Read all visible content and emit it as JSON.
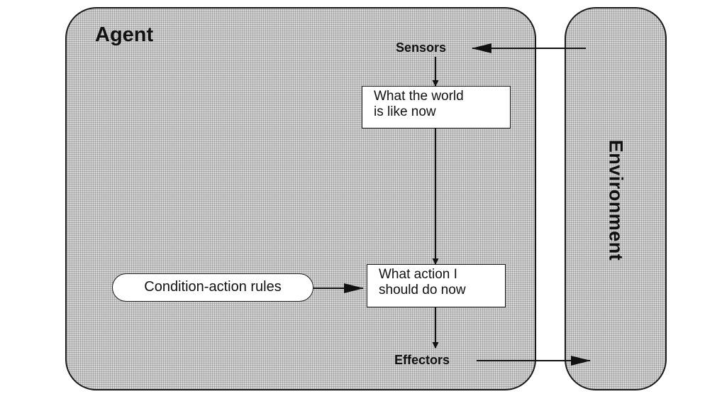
{
  "diagram": {
    "agent_title": "Agent",
    "environment_title": "Environment",
    "sensors_label": "Sensors",
    "effectors_label": "Effectors",
    "world_state_box": {
      "line1": "What the world",
      "line2": "is like now"
    },
    "action_box": {
      "line1": "What action I",
      "line2": "should do now"
    },
    "rules_label": "Condition-action rules"
  }
}
